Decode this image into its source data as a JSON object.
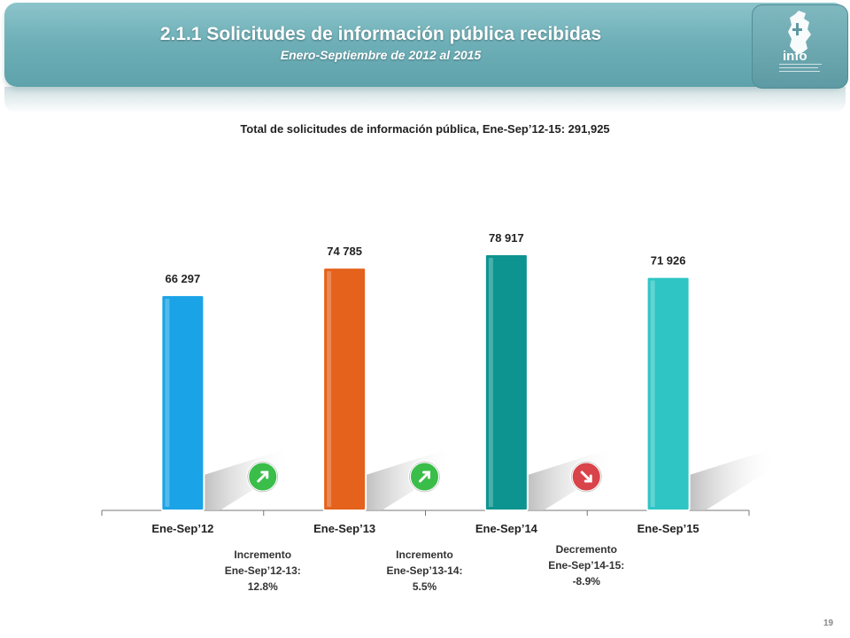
{
  "header": {
    "title": "2.1.1 Solicitudes de información pública recibidas",
    "subtitle": "Enero-Septiembre de 2012 al 2015",
    "logo_text": "info"
  },
  "summary": "Total de solicitudes de información pública, Ene-Sep’12-15: 291,925",
  "chart_data": {
    "type": "bar",
    "categories": [
      "Ene-Sep’12",
      "Ene-Sep’13",
      "Ene-Sep’14",
      "Ene-Sep’15"
    ],
    "values": [
      66297,
      74785,
      78917,
      71926
    ],
    "value_labels": [
      "66 297",
      "74 785",
      "78 917",
      "71 926"
    ],
    "colors": [
      "#1aa3e6",
      "#e4621c",
      "#0d9490",
      "#2fc5c5"
    ],
    "ylim": [
      0,
      80000
    ],
    "grid": false,
    "legend": "none"
  },
  "changes": [
    {
      "line1": "Incremento",
      "line2": "Ene-Sep’12-13:",
      "line3": "12.8%",
      "direction": "up",
      "color": "#3bbd4a"
    },
    {
      "line1": "Incremento",
      "line2": "Ene-Sep’13-14:",
      "line3": "5.5%",
      "direction": "up",
      "color": "#3bbd4a"
    },
    {
      "line1": "Decremento",
      "line2": "Ene-Sep’14-15:",
      "line3": "-8.9%",
      "direction": "down",
      "color": "#d9434a"
    }
  ],
  "page_number": "19"
}
